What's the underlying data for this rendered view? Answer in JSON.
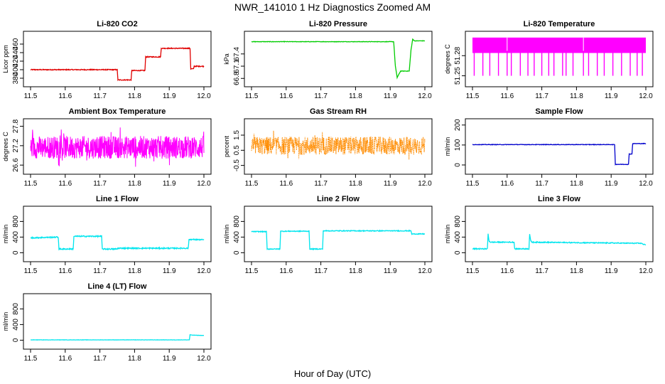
{
  "figure": {
    "title": "NWR_141010  1 Hz Diagnostics Zoomed AM",
    "xlabel": "Hour of Day (UTC)"
  },
  "chart_data": [
    {
      "type": "line",
      "title": "Li-820 CO2",
      "ylabel": "Licor ppm",
      "color": "#e00000",
      "xlim": [
        11.5,
        12.0
      ],
      "xticks": [
        11.5,
        11.6,
        11.7,
        11.8,
        11.9,
        12.0
      ],
      "ylim": [
        370,
        480
      ],
      "yticks": [
        380,
        400,
        420,
        440,
        460
      ],
      "noise": 1,
      "x": [
        11.5,
        11.75,
        11.752,
        11.79,
        11.792,
        11.83,
        11.832,
        11.875,
        11.877,
        11.96,
        11.962,
        11.97,
        11.972,
        12.0
      ],
      "y": [
        400,
        400,
        376,
        376,
        398,
        398,
        430,
        430,
        450,
        450,
        402,
        402,
        408,
        408
      ]
    },
    {
      "type": "line",
      "title": "Li-820 Pressure",
      "ylabel": "kPa",
      "color": "#00cc00",
      "xlim": [
        11.5,
        12.0
      ],
      "xticks": [
        11.5,
        11.6,
        11.7,
        11.8,
        11.9,
        12.0
      ],
      "ylim": [
        66.7,
        67.85
      ],
      "yticks": [
        66.8,
        67.1,
        67.4
      ],
      "noise": 0.005,
      "x": [
        11.5,
        11.91,
        11.915,
        11.92,
        11.93,
        11.955,
        11.96,
        11.965,
        11.97,
        12.0
      ],
      "y": [
        67.7,
        67.7,
        67.1,
        66.82,
        66.98,
        66.98,
        67.5,
        67.76,
        67.72,
        67.72
      ]
    },
    {
      "type": "line",
      "title": "Li-820 Temperature",
      "ylabel": "degrees C",
      "color": "#ff00ff",
      "xlim": [
        11.5,
        12.0
      ],
      "xticks": [
        11.5,
        11.6,
        11.7,
        11.8,
        11.9,
        12.0
      ],
      "ylim": [
        51.24,
        51.31
      ],
      "yticks": [
        51.25,
        51.28
      ],
      "band": [
        51.284,
        51.307
      ],
      "spikes": [
        11.505,
        11.53,
        11.55,
        11.575,
        11.6,
        11.612,
        11.638,
        11.66,
        11.678,
        11.7,
        11.72,
        11.735,
        11.76,
        11.77,
        11.79,
        11.82,
        11.835,
        11.86,
        11.88,
        11.905,
        11.93,
        11.955,
        11.975,
        11.99
      ],
      "spike_min": 51.25
    },
    {
      "type": "line",
      "title": "Ambient Box Temperature",
      "ylabel": "degrees C",
      "color": "#ff00ff",
      "xlim": [
        11.5,
        12.0
      ],
      "xticks": [
        11.5,
        11.6,
        11.7,
        11.8,
        11.9,
        12.0
      ],
      "ylim": [
        26.45,
        27.9
      ],
      "yticks": [
        26.6,
        27.2,
        27.8
      ],
      "noise_band": [
        26.8,
        27.5
      ]
    },
    {
      "type": "scatter",
      "title": "Gas Stream RH",
      "ylabel": "percent",
      "color": "#ff8c00",
      "xlim": [
        11.5,
        12.0
      ],
      "xticks": [
        11.5,
        11.6,
        11.7,
        11.8,
        11.9,
        12.0
      ],
      "ylim": [
        -0.8,
        2.3
      ],
      "yticks": [
        -0.5,
        0.5,
        1.5
      ],
      "noise_band": [
        0.2,
        1.4
      ]
    },
    {
      "type": "line",
      "title": "Sample Flow",
      "ylabel": "ml/min",
      "color": "#0000cc",
      "xlim": [
        11.5,
        12.0
      ],
      "xticks": [
        11.5,
        11.6,
        11.7,
        11.8,
        11.9,
        12.0
      ],
      "ylim": [
        -25,
        210
      ],
      "yticks": [
        0,
        100,
        200
      ],
      "noise": 1.2,
      "x": [
        11.5,
        11.91,
        11.912,
        11.95,
        11.952,
        11.96,
        11.962,
        12.0
      ],
      "y": [
        102,
        102,
        3,
        3,
        55,
        55,
        107,
        107
      ]
    },
    {
      "type": "line",
      "title": "Line 1 Flow",
      "ylabel": "ml/min",
      "color": "#00e5ee",
      "xlim": [
        11.5,
        12.0
      ],
      "xticks": [
        11.5,
        11.6,
        11.7,
        11.8,
        11.9,
        12.0
      ],
      "ylim": [
        -120,
        1080
      ],
      "yticks": [
        0,
        400,
        800
      ],
      "noise": 15,
      "x": [
        11.5,
        11.58,
        11.582,
        11.623,
        11.625,
        11.705,
        11.707,
        11.75,
        11.752,
        11.955,
        11.957,
        12.0
      ],
      "y": [
        380,
        400,
        95,
        95,
        420,
        420,
        95,
        95,
        115,
        115,
        340,
        330
      ]
    },
    {
      "type": "line",
      "title": "Line 2 Flow",
      "ylabel": "ml/min",
      "color": "#00e5ee",
      "xlim": [
        11.5,
        12.0
      ],
      "xticks": [
        11.5,
        11.6,
        11.7,
        11.8,
        11.9,
        12.0
      ],
      "ylim": [
        -120,
        1080
      ],
      "yticks": [
        0,
        400,
        800
      ],
      "noise": 10,
      "x": [
        11.5,
        11.543,
        11.545,
        11.582,
        11.584,
        11.666,
        11.668,
        11.705,
        11.707,
        11.96,
        11.962,
        12.0
      ],
      "y": [
        540,
        540,
        95,
        95,
        550,
        550,
        95,
        95,
        560,
        560,
        480,
        480
      ]
    },
    {
      "type": "line",
      "title": "Line 3 Flow",
      "ylabel": "ml/min",
      "color": "#00e5ee",
      "xlim": [
        11.5,
        12.0
      ],
      "xticks": [
        11.5,
        11.6,
        11.7,
        11.8,
        11.9,
        12.0
      ],
      "ylim": [
        -120,
        1080
      ],
      "yticks": [
        0,
        400,
        800
      ],
      "noise": 12,
      "x": [
        11.5,
        11.543,
        11.545,
        11.548,
        11.552,
        11.62,
        11.622,
        11.663,
        11.665,
        11.668,
        11.672,
        11.99,
        11.992,
        12.0
      ],
      "y": [
        100,
        100,
        480,
        300,
        270,
        270,
        100,
        100,
        480,
        300,
        270,
        240,
        210,
        210
      ]
    },
    {
      "type": "line",
      "title": "Line 4 (LT) Flow",
      "ylabel": "ml/min",
      "color": "#00e5ee",
      "xlim": [
        11.5,
        12.0
      ],
      "xticks": [
        11.5,
        11.6,
        11.7,
        11.8,
        11.9,
        12.0
      ],
      "ylim": [
        -120,
        1080
      ],
      "yticks": [
        0,
        400,
        800
      ],
      "noise": 3,
      "x": [
        11.5,
        11.958,
        11.96,
        11.965,
        12.0
      ],
      "y": [
        8,
        8,
        140,
        130,
        120
      ]
    }
  ]
}
